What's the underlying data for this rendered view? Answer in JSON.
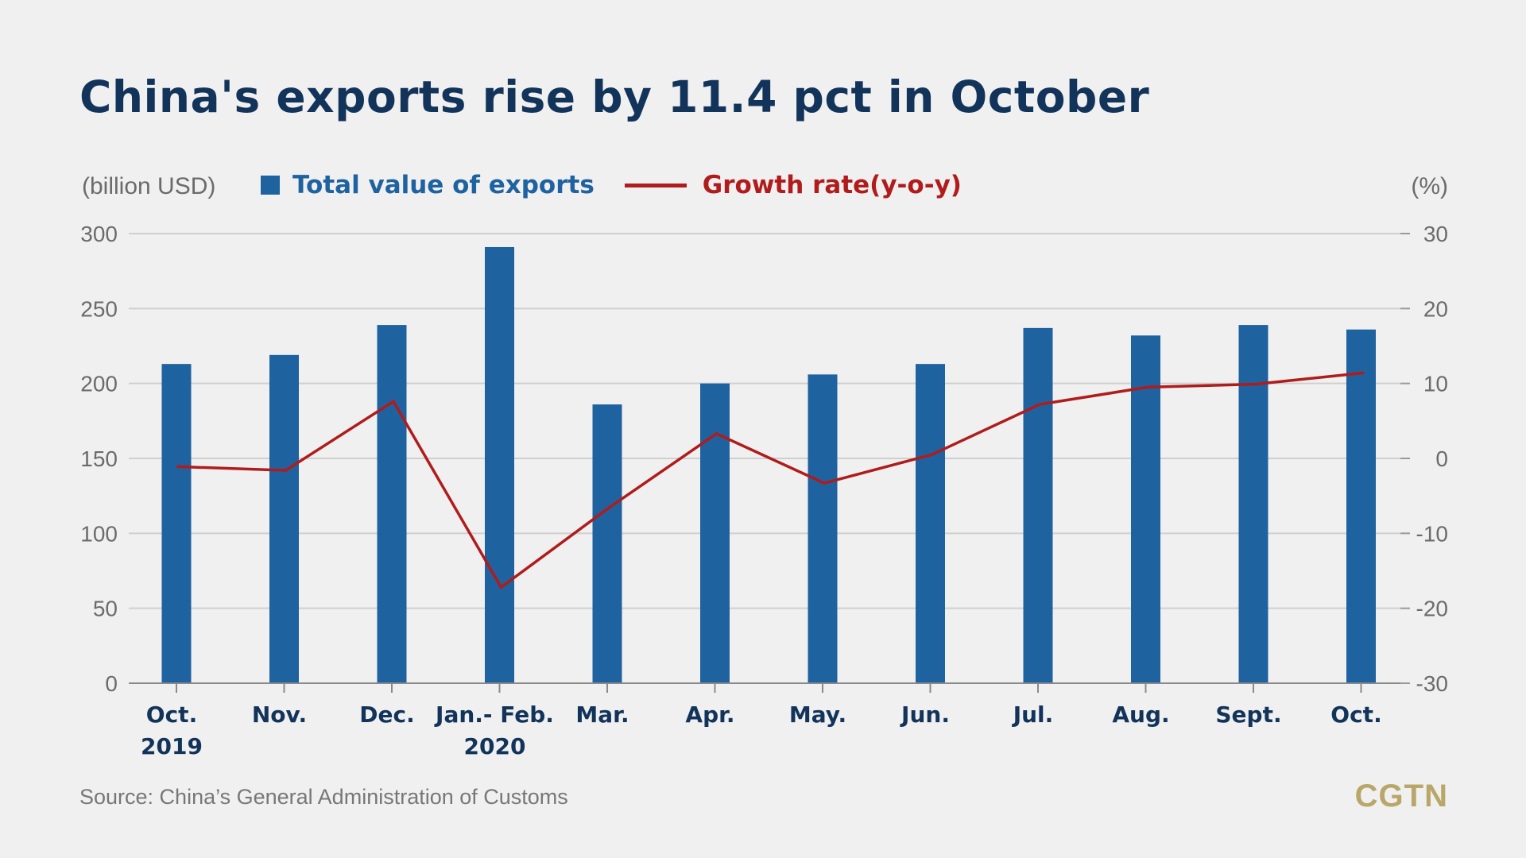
{
  "title": "China's exports rise by 11.4 pct in October",
  "colors": {
    "background": "#f0f0f0",
    "title": "#13345a",
    "bar": "#1f62a0",
    "line": "#b01c1c",
    "grid": "#cfcfcf",
    "brand": "#b9a76a"
  },
  "source": "Source: China’s General Administration of Customs",
  "brand": "CGTN",
  "chart_data": {
    "type": "bar",
    "title": "China's exports rise by 11.4 pct in October",
    "y_left_label": "(billion USD)",
    "y_right_label": "(%)",
    "categories": [
      [
        "Oct.",
        "2019"
      ],
      [
        "Nov."
      ],
      [
        "Dec."
      ],
      [
        "Jan.- Feb.",
        "2020"
      ],
      [
        "Mar."
      ],
      [
        "Apr."
      ],
      [
        "May."
      ],
      [
        "Jun."
      ],
      [
        "Jul."
      ],
      [
        "Aug."
      ],
      [
        "Sept."
      ],
      [
        "Oct."
      ]
    ],
    "series": [
      {
        "name": "Total value of exports",
        "type": "bar",
        "axis": "left",
        "values": [
          213,
          219,
          239,
          291,
          186,
          200,
          206,
          213,
          237,
          232,
          239,
          236
        ]
      },
      {
        "name": "Growth rate(y-o-y)",
        "type": "line",
        "axis": "right",
        "values": [
          -1.1,
          -1.6,
          7.6,
          -17.2,
          -6.6,
          3.3,
          -3.3,
          0.5,
          7.2,
          9.5,
          9.9,
          11.4
        ]
      }
    ],
    "y_left": {
      "ticks": [
        300,
        250,
        200,
        150,
        100,
        50,
        0
      ],
      "lim": [
        0,
        300
      ]
    },
    "y_right": {
      "ticks": [
        30,
        20,
        10,
        0,
        -10,
        -20,
        -30
      ],
      "lim": [
        -30,
        30
      ]
    },
    "grid": true,
    "legend_position": "top"
  }
}
